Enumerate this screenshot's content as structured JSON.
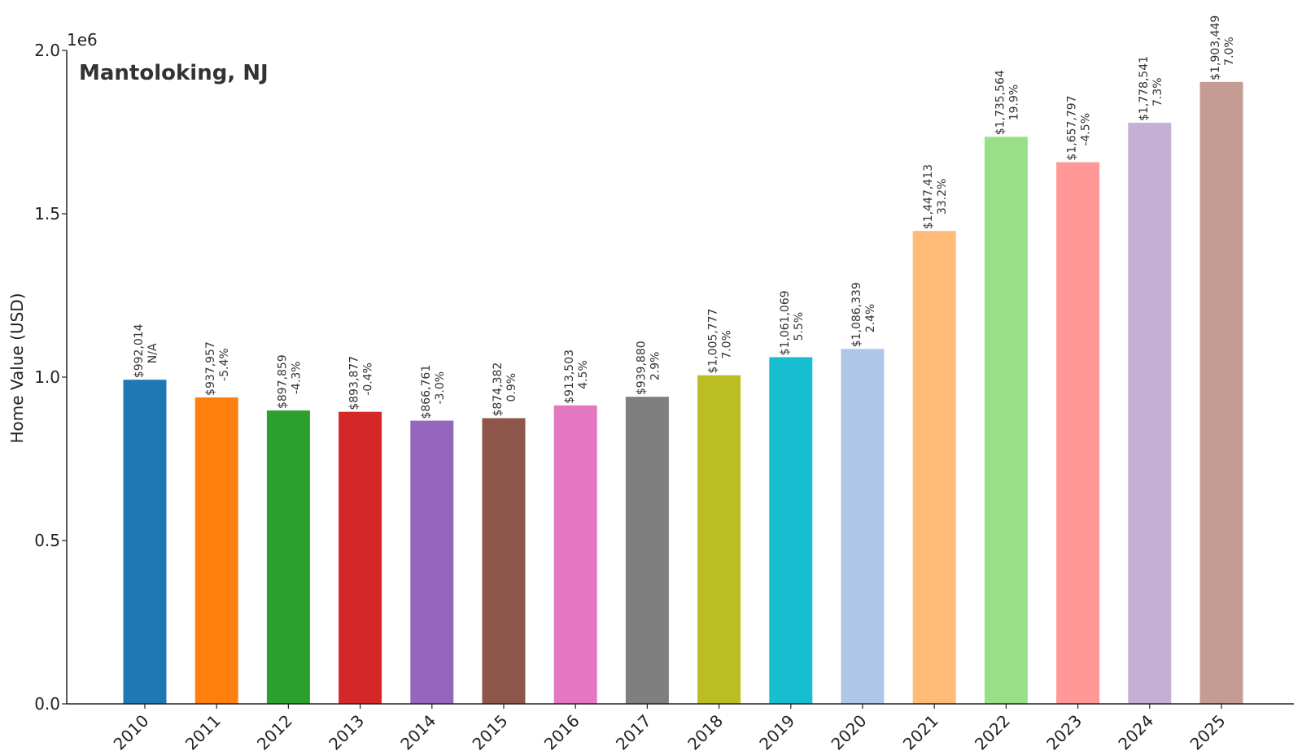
{
  "chart_data": {
    "type": "bar",
    "title": "Mantoloking, NJ",
    "ylabel": "Home Value (USD)",
    "xlabel": "",
    "y_scale_label": "1e6",
    "ylim": [
      0,
      2000000
    ],
    "yticks": [
      0,
      500000,
      1000000,
      1500000,
      2000000
    ],
    "ytick_labels": [
      "0.0",
      "0.5",
      "1.0",
      "1.5",
      "2.0"
    ],
    "grid": false,
    "categories": [
      "2010",
      "2011",
      "2012",
      "2013",
      "2014",
      "2015",
      "2016",
      "2017",
      "2018",
      "2019",
      "2020",
      "2021",
      "2022",
      "2023",
      "2024",
      "2025"
    ],
    "values": [
      992014,
      937957,
      897859,
      893877,
      866761,
      874382,
      913503,
      939880,
      1005777,
      1061069,
      1086339,
      1447413,
      1735564,
      1657797,
      1778541,
      1903449
    ],
    "value_labels": [
      "$992,014",
      "$937,957",
      "$897,859",
      "$893,877",
      "$866,761",
      "$874,382",
      "$913,503",
      "$939,880",
      "$1,005,777",
      "$1,061,069",
      "$1,086,339",
      "$1,447,413",
      "$1,735,564",
      "$1,657,797",
      "$1,778,541",
      "$1,903,449"
    ],
    "change_labels": [
      "N/A",
      "-5.4%",
      "-4.3%",
      "-0.4%",
      "-3.0%",
      "0.9%",
      "4.5%",
      "2.9%",
      "7.0%",
      "5.5%",
      "2.4%",
      "33.2%",
      "19.9%",
      "-4.5%",
      "7.3%",
      "7.0%"
    ],
    "colors": [
      "#1f77b4",
      "#ff7f0e",
      "#2ca02c",
      "#d62728",
      "#9467bd",
      "#8c564b",
      "#e377c2",
      "#7f7f7f",
      "#bcbd22",
      "#17becf",
      "#aec7e8",
      "#ffbb78",
      "#98df8a",
      "#ff9896",
      "#c5b0d5",
      "#c49c94"
    ]
  }
}
